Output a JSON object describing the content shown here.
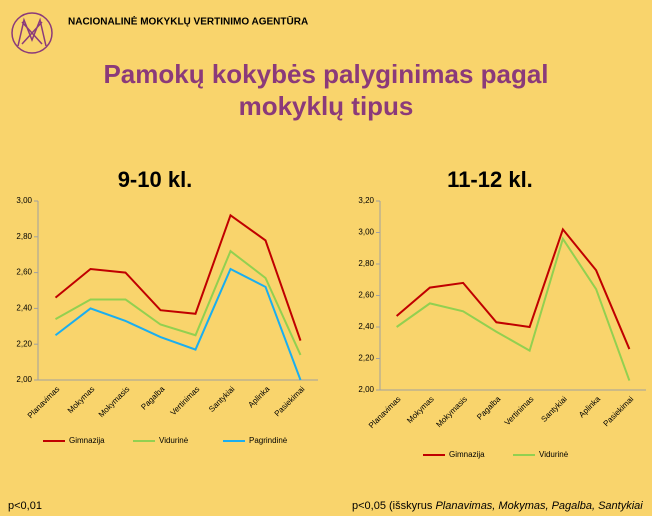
{
  "header": {
    "agency": "NACIONALINĖ MOKYKLŲ VERTINIMO AGENTŪRA",
    "title_lines": [
      "Pamokų kokybės palyginimas pagal",
      "mokyklų tipus"
    ]
  },
  "chart_data": [
    {
      "type": "line",
      "title": "9-10 kl.",
      "categories": [
        "Planavimas",
        "Mokymas",
        "Mokymasis",
        "Pagalba",
        "Vertinimas",
        "Santykiai",
        "Aplinka",
        "Pasiekimai"
      ],
      "series": [
        {
          "name": "Gimnazija",
          "color": "#c00000",
          "values": [
            2.46,
            2.62,
            2.6,
            2.39,
            2.37,
            2.92,
            2.78,
            2.22
          ]
        },
        {
          "name": "Vidurinė",
          "color": "#92d050",
          "values": [
            2.34,
            2.45,
            2.45,
            2.31,
            2.25,
            2.72,
            2.57,
            2.14
          ]
        },
        {
          "name": "Pagrindinė",
          "color": "#1aaef0",
          "values": [
            2.25,
            2.4,
            2.33,
            2.24,
            2.17,
            2.62,
            2.52,
            2.0
          ]
        }
      ],
      "ylim": [
        2,
        3
      ],
      "yticks": [
        {
          "value": 2,
          "label": "2,00"
        },
        {
          "value": 2.2,
          "label": "2,20"
        },
        {
          "value": 2.4,
          "label": "2,40"
        },
        {
          "value": 2.6,
          "label": "2,60"
        },
        {
          "value": 2.8,
          "label": "2,80"
        },
        {
          "value": 3,
          "label": "3,00"
        }
      ],
      "legend": "bottom",
      "note": "p<0,01"
    },
    {
      "type": "line",
      "title": "11-12 kl.",
      "categories": [
        "Planavimas",
        "Mokymas",
        "Mokymasis",
        "Pagalba",
        "Vertinimas",
        "Santykiai",
        "Aplinka",
        "Pasiekimai"
      ],
      "series": [
        {
          "name": "Gimnazija",
          "color": "#c00000",
          "values": [
            2.47,
            2.65,
            2.68,
            2.43,
            2.4,
            3.02,
            2.76,
            2.26
          ]
        },
        {
          "name": "Vidurinė",
          "color": "#92d050",
          "values": [
            2.4,
            2.55,
            2.5,
            2.37,
            2.25,
            2.96,
            2.64,
            2.06
          ]
        }
      ],
      "ylim": [
        2,
        3.2
      ],
      "yticks": [
        {
          "value": 2,
          "label": "2,00"
        },
        {
          "value": 2.2,
          "label": "2,20"
        },
        {
          "value": 2.4,
          "label": "2,40"
        },
        {
          "value": 2.6,
          "label": "2,60"
        },
        {
          "value": 2.8,
          "label": "2,80"
        },
        {
          "value": 3,
          "label": "3,00"
        },
        {
          "value": 3.2,
          "label": "3,20"
        }
      ],
      "legend": "bottom",
      "note": [
        "p<0,05 (išskyrus ",
        "Planavimas, Mokymas, Pagalba, Santykiai"
      ]
    }
  ]
}
